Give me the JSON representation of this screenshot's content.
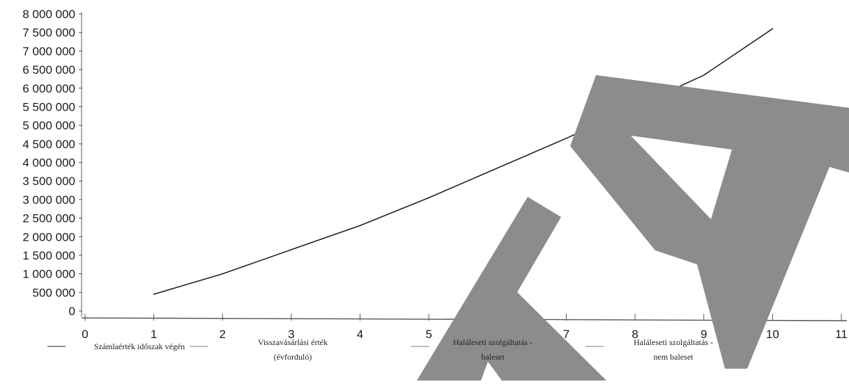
{
  "colors": {
    "line": "#222222",
    "axis": "#555555",
    "watermark": "#8c8c8c",
    "background": "#ffffff"
  },
  "chart_data": {
    "type": "line",
    "x": [
      1,
      2,
      3,
      4,
      5,
      6,
      7,
      8,
      9,
      10
    ],
    "series": [
      {
        "name": "Számlaérték időszak végén",
        "values": [
          450000,
          1000000,
          1650000,
          2300000,
          3050000,
          3850000,
          4650000,
          5500000,
          6350000,
          7600000
        ]
      }
    ],
    "xlim": [
      0,
      11
    ],
    "ylim": [
      0,
      8000000
    ],
    "x_ticks": [
      "0",
      "1",
      "2",
      "3",
      "4",
      "5",
      "6",
      "7",
      "8",
      "9",
      "10",
      "11"
    ],
    "y_ticks": [
      "0",
      "500 000",
      "1 000 000",
      "1 500 000",
      "2 000 000",
      "2 500 000",
      "3 000 000",
      "3 500 000",
      "4 000 000",
      "4 500 000",
      "5 000 000",
      "5 500 000",
      "6 000 000",
      "6 500 000",
      "7 000 000",
      "7 500 000",
      "8 000 000"
    ],
    "legend": {
      "placement": "bottom",
      "entries": [
        {
          "line1": "Számlaérték időszak végén",
          "line2": ""
        },
        {
          "line1": "Visszavásárlási érték",
          "line2": "(évforduló)"
        },
        {
          "line1": "Haláleseti szolgáltatás -",
          "line2": "baleset"
        },
        {
          "line1": "Haláleseti szolgáltatás -",
          "line2": "nem baleset"
        }
      ]
    },
    "grid": false
  }
}
